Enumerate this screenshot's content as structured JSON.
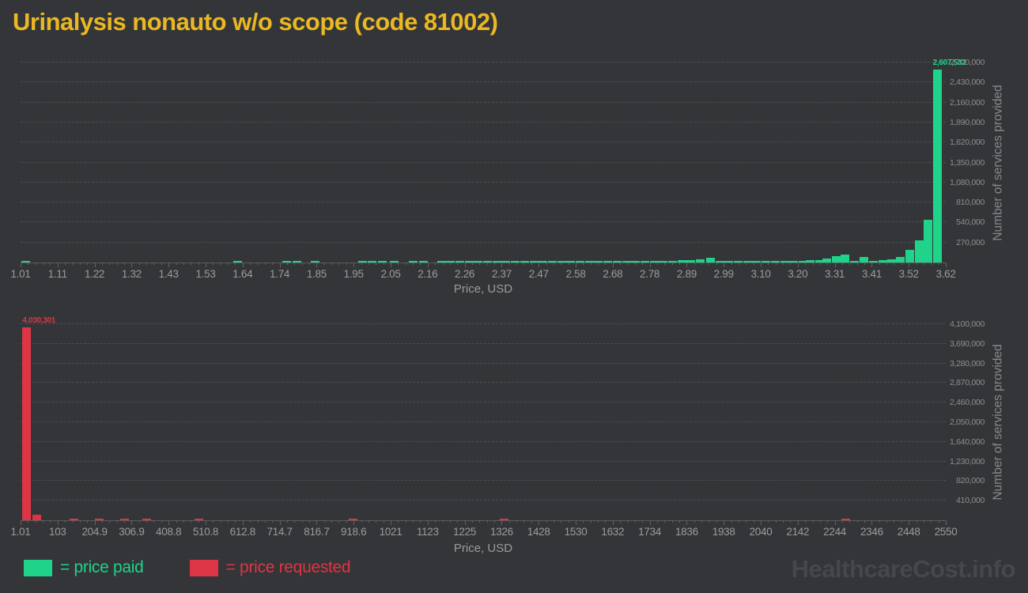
{
  "title": "Urinalysis nonauto w/o scope (code 81002)",
  "watermark": "HealthcareCost.info",
  "colors": {
    "background": "#343538",
    "title": "#e9b822",
    "paid": "#1fd38a",
    "requested": "#dd3545",
    "axis_text": "#9b9b9b",
    "grid": "#4d4d4d"
  },
  "legend": {
    "items": [
      {
        "label": "= price paid",
        "color": "#1fd38a"
      },
      {
        "label": "= price requested",
        "color": "#dd3545"
      }
    ]
  },
  "chart_data": [
    {
      "type": "bar",
      "name": "price-paid-histogram",
      "series": "price paid",
      "color": "#1fd38a",
      "xlabel": "Price, USD",
      "ylabel": "Number of services provided",
      "xlim": [
        1.01,
        3.62
      ],
      "ymax": 2700000,
      "grid": true,
      "peak_label": "2,607,532",
      "x_ticks": [
        "1.01",
        "1.11",
        "1.22",
        "1.32",
        "1.43",
        "1.53",
        "1.64",
        "1.74",
        "1.85",
        "1.95",
        "2.05",
        "2.16",
        "2.26",
        "2.37",
        "2.47",
        "2.58",
        "2.68",
        "2.78",
        "2.89",
        "2.99",
        "3.10",
        "3.20",
        "3.31",
        "3.41",
        "3.52",
        "3.62"
      ],
      "y_ticks": [
        "270,000",
        "540,000",
        "810,000",
        "1,080,000",
        "1,350,000",
        "1,620,000",
        "1,890,000",
        "2,160,000",
        "2,430,000",
        "2,700,000"
      ],
      "bars": [
        {
          "x": 0.001,
          "v": 22000
        },
        {
          "x": 0.23,
          "v": 14000
        },
        {
          "x": 0.283,
          "v": 14000
        },
        {
          "x": 0.294,
          "v": 14000
        },
        {
          "x": 0.314,
          "v": 14000
        },
        {
          "x": 0.365,
          "v": 14000
        },
        {
          "x": 0.375,
          "v": 14000
        },
        {
          "x": 0.386,
          "v": 14000
        },
        {
          "x": 0.399,
          "v": 14000
        },
        {
          "x": 0.42,
          "v": 16000
        },
        {
          "x": 0.431,
          "v": 16000
        },
        {
          "x": 0.45,
          "v": 15000
        },
        {
          "x": 0.46,
          "v": 18000
        },
        {
          "x": 0.47,
          "v": 14000
        },
        {
          "x": 0.48,
          "v": 16000
        },
        {
          "x": 0.49,
          "v": 15000
        },
        {
          "x": 0.5,
          "v": 18000
        },
        {
          "x": 0.51,
          "v": 15000
        },
        {
          "x": 0.52,
          "v": 16000
        },
        {
          "x": 0.53,
          "v": 15000
        },
        {
          "x": 0.54,
          "v": 18000
        },
        {
          "x": 0.55,
          "v": 16000
        },
        {
          "x": 0.56,
          "v": 15000
        },
        {
          "x": 0.57,
          "v": 18000
        },
        {
          "x": 0.58,
          "v": 16000
        },
        {
          "x": 0.59,
          "v": 15000
        },
        {
          "x": 0.6,
          "v": 18000
        },
        {
          "x": 0.61,
          "v": 16000
        },
        {
          "x": 0.62,
          "v": 15000
        },
        {
          "x": 0.63,
          "v": 18000
        },
        {
          "x": 0.64,
          "v": 16000
        },
        {
          "x": 0.65,
          "v": 15000
        },
        {
          "x": 0.66,
          "v": 18000
        },
        {
          "x": 0.67,
          "v": 20000
        },
        {
          "x": 0.68,
          "v": 18000
        },
        {
          "x": 0.69,
          "v": 22000
        },
        {
          "x": 0.7,
          "v": 25000
        },
        {
          "x": 0.71,
          "v": 30000
        },
        {
          "x": 0.72,
          "v": 36000
        },
        {
          "x": 0.73,
          "v": 43000
        },
        {
          "x": 0.741,
          "v": 64000
        },
        {
          "x": 0.751,
          "v": 22000
        },
        {
          "x": 0.761,
          "v": 16000
        },
        {
          "x": 0.771,
          "v": 15000
        },
        {
          "x": 0.781,
          "v": 18000
        },
        {
          "x": 0.791,
          "v": 20000
        },
        {
          "x": 0.801,
          "v": 16000
        },
        {
          "x": 0.811,
          "v": 18000
        },
        {
          "x": 0.821,
          "v": 20000
        },
        {
          "x": 0.831,
          "v": 22000
        },
        {
          "x": 0.841,
          "v": 26000
        },
        {
          "x": 0.849,
          "v": 35000
        },
        {
          "x": 0.859,
          "v": 29000
        },
        {
          "x": 0.867,
          "v": 50000
        },
        {
          "x": 0.877,
          "v": 89000
        },
        {
          "x": 0.886,
          "v": 107000
        },
        {
          "x": 0.897,
          "v": 25000
        },
        {
          "x": 0.907,
          "v": 71000
        },
        {
          "x": 0.917,
          "v": 18000
        },
        {
          "x": 0.927,
          "v": 29000
        },
        {
          "x": 0.937,
          "v": 46000
        },
        {
          "x": 0.946,
          "v": 78000
        },
        {
          "x": 0.956,
          "v": 171000
        },
        {
          "x": 0.967,
          "v": 303000
        },
        {
          "x": 0.976,
          "v": 575000
        },
        {
          "x": 0.986,
          "v": 2607532
        }
      ]
    },
    {
      "type": "bar",
      "name": "price-requested-histogram",
      "series": "price requested",
      "color": "#dd3545",
      "xlabel": "Price, USD",
      "ylabel": "Number of services provided",
      "xlim": [
        1.01,
        2550
      ],
      "ymax": 4100000,
      "grid": true,
      "peak_label": "4,030,301",
      "x_ticks": [
        "1.01",
        "103",
        "204.9",
        "306.9",
        "408.8",
        "510.8",
        "612.8",
        "714.7",
        "816.7",
        "918.6",
        "1021",
        "1123",
        "1225",
        "1326",
        "1428",
        "1530",
        "1632",
        "1734",
        "1836",
        "1938",
        "2040",
        "2142",
        "2244",
        "2346",
        "2448",
        "2550"
      ],
      "y_ticks": [
        "410,000",
        "820,000",
        "1,230,000",
        "1,640,000",
        "2,050,000",
        "2,460,000",
        "2,870,000",
        "3,280,000",
        "3,690,000",
        "4,100,000"
      ],
      "bars": [
        {
          "x": 0.002,
          "v": 4030301
        },
        {
          "x": 0.013,
          "v": 120000
        },
        {
          "x": 0.053,
          "v": 15000
        },
        {
          "x": 0.08,
          "v": 14000
        },
        {
          "x": 0.108,
          "v": 17000
        },
        {
          "x": 0.132,
          "v": 14000
        },
        {
          "x": 0.188,
          "v": 13000
        },
        {
          "x": 0.355,
          "v": 19000
        },
        {
          "x": 0.518,
          "v": 15000
        },
        {
          "x": 0.887,
          "v": 15000
        }
      ]
    }
  ]
}
